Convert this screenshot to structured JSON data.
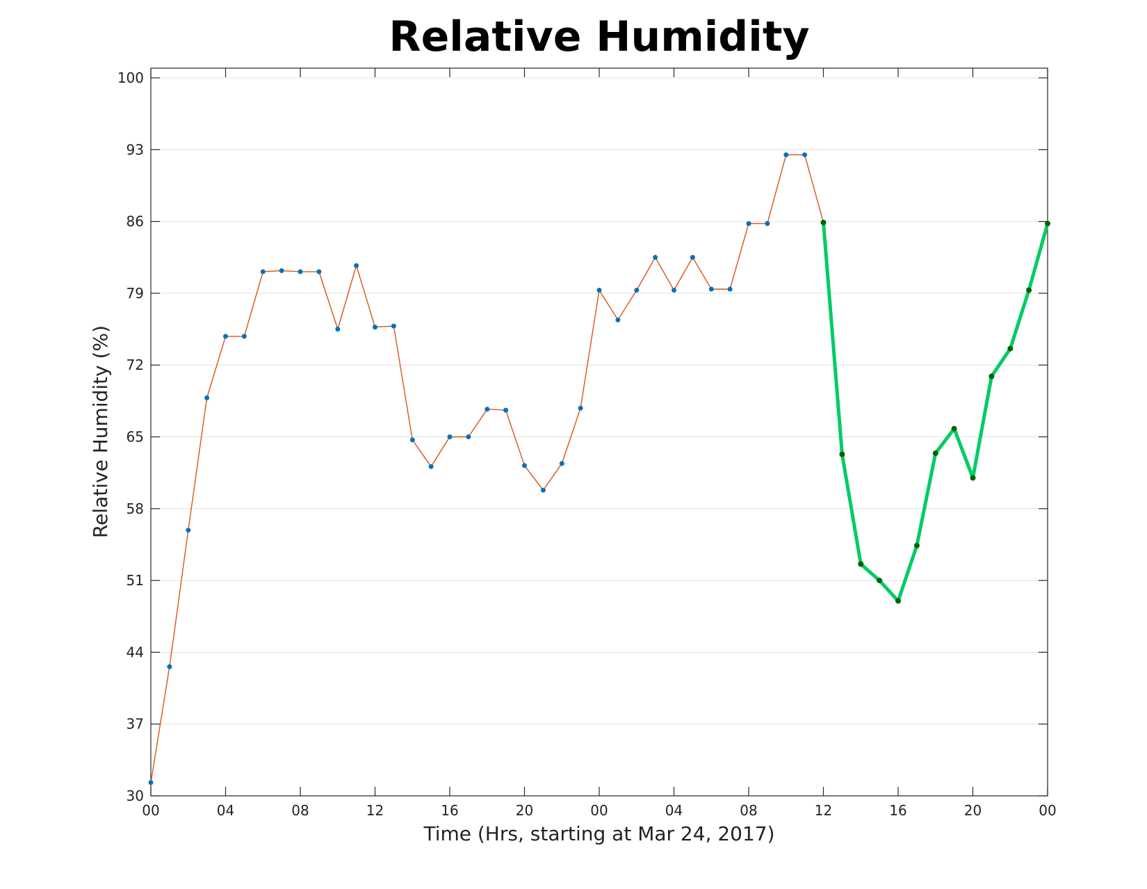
{
  "chart_data": {
    "type": "line",
    "title": "Relative Humidity",
    "xlabel": "Time (Hrs, starting at Mar 24, 2017)",
    "ylabel": "Relative Humidity (%)",
    "ylim": [
      30,
      100
    ],
    "xlim": [
      0,
      48
    ],
    "grid": "horizontal",
    "x_ticks": [
      {
        "x": 0,
        "label": "00"
      },
      {
        "x": 4,
        "label": "04"
      },
      {
        "x": 8,
        "label": "08"
      },
      {
        "x": 12,
        "label": "12"
      },
      {
        "x": 16,
        "label": "16"
      },
      {
        "x": 20,
        "label": "20"
      },
      {
        "x": 24,
        "label": "00"
      },
      {
        "x": 28,
        "label": "04"
      },
      {
        "x": 32,
        "label": "08"
      },
      {
        "x": 36,
        "label": "12"
      },
      {
        "x": 40,
        "label": "16"
      },
      {
        "x": 44,
        "label": "20"
      },
      {
        "x": 48,
        "label": "00"
      }
    ],
    "y_ticks": [
      30,
      37,
      44,
      51,
      58,
      65,
      72,
      79,
      86,
      93,
      100
    ],
    "series": [
      {
        "color": "#d95319",
        "marker_color": "#0072bd",
        "x": [
          0,
          1,
          2,
          3,
          4,
          5,
          6,
          7,
          8,
          9,
          10,
          11,
          12,
          13,
          14,
          15,
          16,
          17,
          18,
          19,
          20,
          21,
          22,
          23,
          24,
          25,
          26,
          27,
          28,
          29,
          30,
          31,
          32,
          33,
          34,
          35,
          36
        ],
        "values": [
          31.3,
          42.6,
          55.9,
          68.8,
          74.8,
          74.8,
          81.1,
          81.2,
          81.1,
          81.1,
          75.5,
          81.7,
          75.7,
          75.8,
          64.7,
          62.1,
          65.0,
          65.0,
          67.7,
          67.6,
          62.2,
          59.8,
          62.4,
          67.8,
          79.3,
          76.4,
          79.3,
          82.5,
          79.3,
          82.5,
          79.4,
          79.4,
          85.8,
          85.8,
          92.5,
          92.5,
          85.9
        ]
      },
      {
        "color": "#00cc66",
        "marker_color": "#006400",
        "x": [
          36,
          37,
          38,
          39,
          40,
          41,
          42,
          43,
          44,
          45,
          46,
          47,
          48
        ],
        "values": [
          85.9,
          63.3,
          52.6,
          51.0,
          49.0,
          54.4,
          63.4,
          65.8,
          61.0,
          70.9,
          73.6,
          79.3,
          85.8
        ]
      }
    ]
  }
}
